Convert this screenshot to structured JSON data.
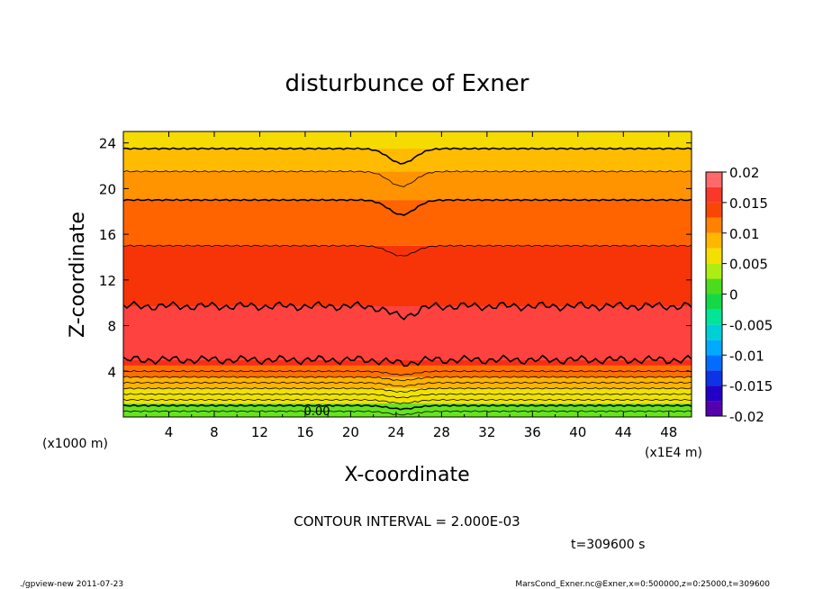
{
  "chart_data": {
    "type": "heatmap",
    "title": "disturbunce of Exner",
    "xlabel": "X-coordinate",
    "ylabel": "Z-coordinate",
    "x_unit_left": "(x1000 m)",
    "x_unit_right": "(x1E4 m)",
    "xlim": [
      0,
      50
    ],
    "ylim": [
      0,
      25
    ],
    "xticks": [
      "4",
      "8",
      "12",
      "16",
      "20",
      "24",
      "28",
      "32",
      "36",
      "40",
      "44",
      "48"
    ],
    "yticks": [
      "4",
      "8",
      "12",
      "16",
      "20",
      "24"
    ],
    "colorbar": {
      "ticks": [
        "0.02",
        "0.015",
        "0.01",
        "0.005",
        "0",
        "-0.005",
        "-0.01",
        "-0.015",
        "-0.02"
      ],
      "range": [
        -0.02,
        0.02
      ]
    },
    "bands": [
      {
        "z0": 0,
        "z1": 1.2,
        "value": 0.002
      },
      {
        "z0": 1.2,
        "z1": 2.5,
        "value": 0.006
      },
      {
        "z0": 2.5,
        "z1": 3.5,
        "value": 0.009
      },
      {
        "z0": 3.5,
        "z1": 4.5,
        "value": 0.012
      },
      {
        "z0": 4.5,
        "z1": 5.0,
        "value": 0.0155
      },
      {
        "z0": 5.0,
        "z1": 9.7,
        "value": 0.0172
      },
      {
        "z0": 9.7,
        "z1": 15.0,
        "value": 0.0145
      },
      {
        "z0": 15.0,
        "z1": 19.0,
        "value": 0.0125
      },
      {
        "z0": 19.0,
        "z1": 21.5,
        "value": 0.0105
      },
      {
        "z0": 21.5,
        "z1": 23.5,
        "value": 0.0085
      },
      {
        "z0": 23.5,
        "z1": 25.0,
        "value": 0.0065
      }
    ],
    "contours": [
      0.5,
      1.0,
      1.5,
      2.0,
      2.5,
      3.0,
      3.5,
      4.0,
      5.0,
      9.7,
      15.0,
      19.0,
      21.5,
      23.5
    ],
    "zero_label": "0.00",
    "contour_interval": "CONTOUR INTERVAL = 2.000E-03",
    "time_label": "t=309600 s"
  },
  "footer": {
    "left": "./gpview-new 2011-07-23",
    "right": "MarsCond_Exner.nc@Exner,x=0:500000,z=0:25000,t=309600"
  }
}
